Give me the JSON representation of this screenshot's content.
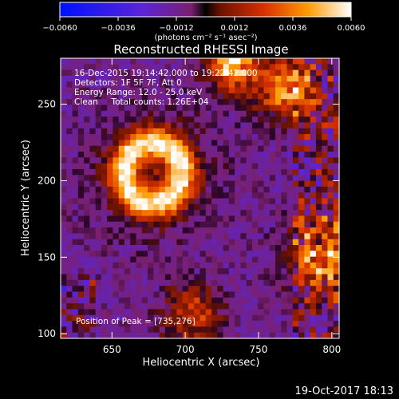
{
  "chart_data": {
    "type": "heatmap",
    "title": "Reconstructed RHESSI Image",
    "xlabel": "Heliocentric X (arcsec)",
    "ylabel": "Heliocentric Y (arcsec)",
    "xlim": [
      615,
      805
    ],
    "ylim": [
      97,
      280
    ],
    "xticks": [
      650,
      700,
      750,
      800
    ],
    "yticks": [
      100,
      150,
      200,
      250
    ],
    "colorbar": {
      "unit": "(photons cm⁻² s⁻¹ asec⁻²)",
      "range": [
        -0.006,
        0.006
      ],
      "ticks": [
        "−0.0060",
        "−0.0036",
        "−0.0012",
        "0.0012",
        "0.0036",
        "0.0060"
      ]
    },
    "annotations": [
      "16-Dec-2015 19:14:42.000 to 19:22:42.000",
      "Detectors: 1F 5F 7F, Att 0",
      "Energy Range: 12.0 - 25.0 keV",
      "Clean     Total counts: 1.26E+04"
    ],
    "peak_label": "Position of Peak = [735,276]",
    "sources": [
      {
        "x": 678,
        "y": 205,
        "kind": "ring",
        "radius": 20,
        "peak": 0.0055
      },
      {
        "x": 732,
        "y": 275,
        "kind": "blob",
        "radius": 12,
        "peak": 0.006
      },
      {
        "x": 768,
        "y": 260,
        "kind": "blob",
        "radius": 14,
        "peak": 0.005
      },
      {
        "x": 795,
        "y": 150,
        "kind": "blob",
        "radius": 18,
        "peak": 0.004
      },
      {
        "x": 705,
        "y": 112,
        "kind": "blob",
        "radius": 14,
        "peak": 0.0035
      }
    ]
  },
  "footer": {
    "date": "19-Oct-2017 18:13"
  }
}
